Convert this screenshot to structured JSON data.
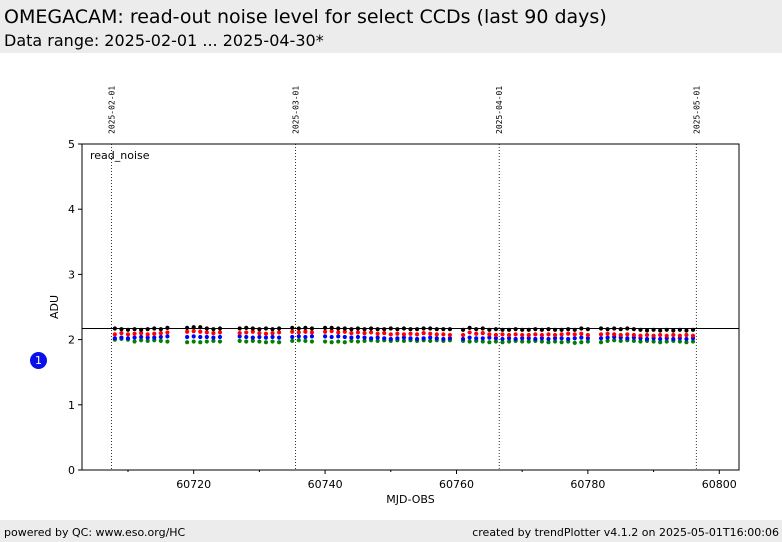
{
  "header": {
    "title": "OMEGACAM: read-out noise level for select CCDs (last 90 days)",
    "subtitle": "Data range: 2025-02-01 ... 2025-04-30*"
  },
  "footer": {
    "left": "powered by QC: www.eso.org/HC",
    "right": "created by trendPlotter v4.1.2 on 2025-05-01T16:00:06"
  },
  "badge": "1",
  "chart_data": {
    "type": "scatter",
    "title": "",
    "panel_label": "read_noise",
    "xlabel": "MJD-OBS",
    "ylabel": "ADU",
    "xlim": [
      60703,
      60803
    ],
    "ylim": [
      0,
      5
    ],
    "xticks": [
      60720,
      60740,
      60760,
      60780,
      60800
    ],
    "yticks": [
      0,
      1,
      2,
      3,
      4,
      5
    ],
    "grid": false,
    "reference_line": 2.17,
    "month_markers": [
      {
        "label": "2025-02-01",
        "x": 60707.5
      },
      {
        "label": "2025-03-01",
        "x": 60735.5
      },
      {
        "label": "2025-04-01",
        "x": 60766.5
      },
      {
        "label": "2025-05-01",
        "x": 60796.5
      }
    ],
    "colors": {
      "black": "#000000",
      "red": "#ff0000",
      "blue": "#0000ff",
      "green": "#008000"
    },
    "mjd": [
      60708,
      60709,
      60710,
      60711,
      60712,
      60713,
      60714,
      60715,
      60716,
      60719,
      60720,
      60721,
      60722,
      60723,
      60724,
      60727,
      60728,
      60729,
      60730,
      60731,
      60732,
      60733,
      60735,
      60736,
      60737,
      60738,
      60740,
      60741,
      60742,
      60743,
      60744,
      60745,
      60746,
      60747,
      60748,
      60749,
      60750,
      60751,
      60752,
      60753,
      60754,
      60755,
      60756,
      60757,
      60758,
      60759,
      60761,
      60762,
      60763,
      60764,
      60765,
      60766,
      60767,
      60768,
      60769,
      60770,
      60771,
      60772,
      60773,
      60774,
      60775,
      60776,
      60777,
      60778,
      60779,
      60780,
      60782,
      60783,
      60784,
      60785,
      60786,
      60787,
      60788,
      60789,
      60790,
      60791,
      60792,
      60793,
      60794,
      60795,
      60796
    ],
    "series": [
      {
        "color": "black",
        "values": [
          2.17,
          2.16,
          2.15,
          2.16,
          2.15,
          2.16,
          2.17,
          2.16,
          2.18,
          2.18,
          2.19,
          2.19,
          2.17,
          2.16,
          2.17,
          2.17,
          2.18,
          2.17,
          2.16,
          2.17,
          2.16,
          2.17,
          2.18,
          2.17,
          2.18,
          2.17,
          2.18,
          2.18,
          2.17,
          2.17,
          2.16,
          2.17,
          2.16,
          2.17,
          2.16,
          2.16,
          2.17,
          2.16,
          2.17,
          2.16,
          2.16,
          2.17,
          2.17,
          2.16,
          2.16,
          2.16,
          2.15,
          2.18,
          2.16,
          2.17,
          2.15,
          2.16,
          2.15,
          2.15,
          2.16,
          2.15,
          2.15,
          2.16,
          2.15,
          2.16,
          2.15,
          2.15,
          2.16,
          2.15,
          2.17,
          2.16,
          2.17,
          2.16,
          2.17,
          2.16,
          2.17,
          2.16,
          2.15,
          2.14,
          2.15,
          2.14,
          2.15,
          2.14,
          2.15,
          2.14,
          2.15
        ]
      },
      {
        "color": "red",
        "values": [
          2.08,
          2.1,
          2.08,
          2.09,
          2.1,
          2.08,
          2.09,
          2.1,
          2.11,
          2.12,
          2.13,
          2.12,
          2.11,
          2.1,
          2.11,
          2.1,
          2.11,
          2.12,
          2.1,
          2.09,
          2.1,
          2.11,
          2.12,
          2.11,
          2.12,
          2.11,
          2.12,
          2.13,
          2.11,
          2.12,
          2.1,
          2.11,
          2.1,
          2.11,
          2.09,
          2.1,
          2.08,
          2.09,
          2.08,
          2.09,
          2.08,
          2.1,
          2.09,
          2.08,
          2.08,
          2.07,
          2.07,
          2.11,
          2.09,
          2.1,
          2.08,
          2.07,
          2.08,
          2.07,
          2.08,
          2.07,
          2.07,
          2.08,
          2.07,
          2.08,
          2.07,
          2.08,
          2.09,
          2.08,
          2.09,
          2.07,
          2.08,
          2.09,
          2.08,
          2.07,
          2.08,
          2.07,
          2.06,
          2.07,
          2.06,
          2.07,
          2.06,
          2.07,
          2.06,
          2.07,
          2.06
        ]
      },
      {
        "color": "blue",
        "values": [
          2.02,
          2.03,
          2.02,
          2.03,
          2.04,
          2.03,
          2.03,
          2.04,
          2.05,
          2.04,
          2.05,
          2.04,
          2.04,
          2.03,
          2.04,
          2.05,
          2.04,
          2.03,
          2.04,
          2.03,
          2.04,
          2.03,
          2.04,
          2.05,
          2.04,
          2.05,
          2.05,
          2.04,
          2.05,
          2.04,
          2.03,
          2.04,
          2.03,
          2.02,
          2.03,
          2.02,
          2.01,
          2.02,
          2.03,
          2.02,
          2.01,
          2.02,
          2.03,
          2.02,
          2.01,
          2.02,
          2.01,
          2.03,
          2.02,
          2.02,
          2.03,
          2.02,
          2.01,
          2.02,
          2.01,
          2.02,
          2.02,
          2.01,
          2.02,
          2.01,
          2.02,
          2.02,
          2.01,
          2.02,
          2.03,
          2.02,
          2.02,
          2.03,
          2.04,
          2.03,
          2.02,
          2.03,
          2.02,
          2.01,
          2.02,
          2.01,
          2.02,
          2.01,
          2.02,
          2.01,
          2.02
        ]
      },
      {
        "color": "green",
        "values": [
          2.0,
          2.01,
          2.0,
          1.97,
          1.99,
          1.98,
          1.99,
          1.98,
          1.97,
          1.96,
          1.97,
          1.96,
          1.97,
          1.98,
          1.97,
          1.98,
          1.97,
          1.98,
          1.97,
          1.96,
          1.97,
          1.96,
          1.98,
          1.99,
          1.98,
          1.97,
          1.97,
          1.96,
          1.97,
          1.96,
          1.98,
          1.97,
          1.98,
          1.99,
          1.98,
          1.99,
          1.98,
          1.99,
          1.98,
          1.99,
          1.98,
          1.99,
          1.98,
          1.99,
          1.98,
          1.99,
          1.98,
          1.97,
          1.98,
          1.97,
          1.96,
          1.97,
          1.96,
          1.97,
          1.98,
          1.97,
          1.97,
          1.98,
          1.97,
          1.96,
          1.97,
          1.96,
          1.97,
          1.95,
          1.96,
          1.97,
          1.96,
          1.98,
          1.99,
          1.98,
          1.99,
          1.98,
          1.97,
          1.98,
          1.97,
          1.96,
          1.97,
          1.98,
          1.97,
          1.96,
          1.97
        ]
      }
    ]
  }
}
